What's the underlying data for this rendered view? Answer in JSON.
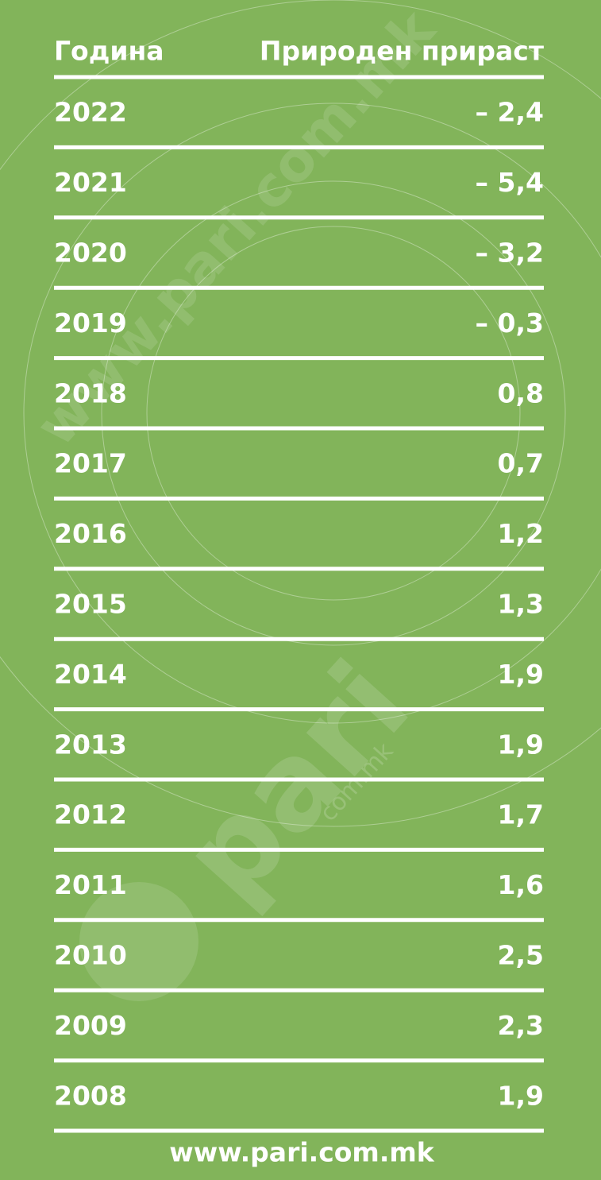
{
  "header": {
    "year": "Година",
    "value": "Природен прираст"
  },
  "rows": [
    [
      "2022",
      "– 2,4"
    ],
    [
      "2021",
      "– 5,4"
    ],
    [
      "2020",
      "– 3,2"
    ],
    [
      "2019",
      "– 0,3"
    ],
    [
      "2018",
      "0,8"
    ],
    [
      "2017",
      "0,7"
    ],
    [
      "2016",
      "1,2"
    ],
    [
      "2015",
      "1,3"
    ],
    [
      "2014",
      "1,9"
    ],
    [
      "2013",
      "1,9"
    ],
    [
      "2012",
      "1,7"
    ],
    [
      "2011",
      "1,6"
    ],
    [
      "2010",
      "2,5"
    ],
    [
      "2009",
      "2,3"
    ],
    [
      "2008",
      "1,9"
    ]
  ],
  "footer": "www.pari.com.mk",
  "watermark": {
    "site": "www.pari.com.mk",
    "logo": "pari",
    "logo_sub": "com.mk"
  }
}
